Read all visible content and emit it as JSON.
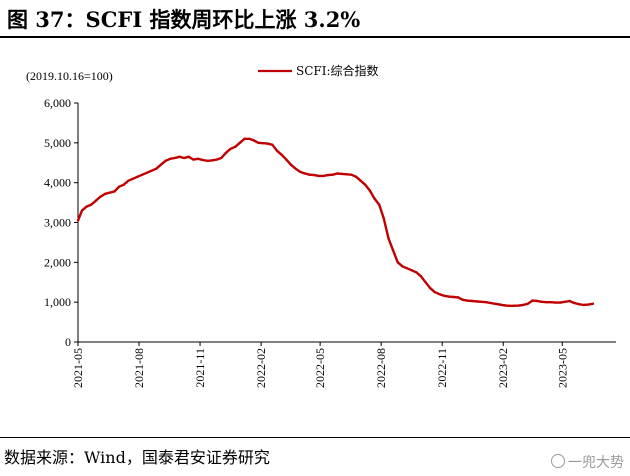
{
  "title": "图 37：SCFI 指数周环比上涨 3.2%",
  "source": "数据来源：Wind，国泰君安证券研究",
  "watermark": "一兜大势",
  "colors": {
    "series": "#c00000",
    "axis": "#000000"
  },
  "chart_data": {
    "type": "line",
    "unit_note": "(2019.10.16=100)",
    "ylim": [
      0,
      6000
    ],
    "yticks": [
      0,
      1000,
      2000,
      3000,
      4000,
      5000,
      6000
    ],
    "ytick_labels": [
      "0",
      "1,000",
      "2,000",
      "3,000",
      "4,000",
      "5,000",
      "6,000"
    ],
    "xlim": [
      "2021-05-01",
      "2023-07-21"
    ],
    "xticks": [
      "2021-05",
      "2021-08",
      "2021-11",
      "2022-02",
      "2022-05",
      "2022-08",
      "2022-11",
      "2023-02",
      "2023-05"
    ],
    "grid": false,
    "legend_position": "top",
    "series": [
      {
        "name": "SCFI:综合指数",
        "points": [
          [
            "2021-05-01",
            3050
          ],
          [
            "2021-05-07",
            3300
          ],
          [
            "2021-05-14",
            3400
          ],
          [
            "2021-05-21",
            3450
          ],
          [
            "2021-05-28",
            3550
          ],
          [
            "2021-06-04",
            3650
          ],
          [
            "2021-06-11",
            3720
          ],
          [
            "2021-06-18",
            3750
          ],
          [
            "2021-06-25",
            3780
          ],
          [
            "2021-07-02",
            3900
          ],
          [
            "2021-07-09",
            3950
          ],
          [
            "2021-07-16",
            4050
          ],
          [
            "2021-07-23",
            4100
          ],
          [
            "2021-07-30",
            4150
          ],
          [
            "2021-08-06",
            4200
          ],
          [
            "2021-08-13",
            4250
          ],
          [
            "2021-08-20",
            4300
          ],
          [
            "2021-08-27",
            4350
          ],
          [
            "2021-09-03",
            4450
          ],
          [
            "2021-09-10",
            4550
          ],
          [
            "2021-09-17",
            4600
          ],
          [
            "2021-09-24",
            4620
          ],
          [
            "2021-10-01",
            4650
          ],
          [
            "2021-10-08",
            4620
          ],
          [
            "2021-10-15",
            4650
          ],
          [
            "2021-10-22",
            4580
          ],
          [
            "2021-10-29",
            4600
          ],
          [
            "2021-11-05",
            4570
          ],
          [
            "2021-11-12",
            4550
          ],
          [
            "2021-11-19",
            4560
          ],
          [
            "2021-11-26",
            4580
          ],
          [
            "2021-12-03",
            4620
          ],
          [
            "2021-12-10",
            4750
          ],
          [
            "2021-12-17",
            4850
          ],
          [
            "2021-12-24",
            4900
          ],
          [
            "2021-12-31",
            5000
          ],
          [
            "2022-01-07",
            5100
          ],
          [
            "2022-01-14",
            5100
          ],
          [
            "2022-01-21",
            5060
          ],
          [
            "2022-01-28",
            5000
          ],
          [
            "2022-02-04",
            4990
          ],
          [
            "2022-02-11",
            4980
          ],
          [
            "2022-02-18",
            4950
          ],
          [
            "2022-02-25",
            4800
          ],
          [
            "2022-03-04",
            4700
          ],
          [
            "2022-03-11",
            4580
          ],
          [
            "2022-03-18",
            4450
          ],
          [
            "2022-03-25",
            4350
          ],
          [
            "2022-04-01",
            4270
          ],
          [
            "2022-04-08",
            4230
          ],
          [
            "2022-04-15",
            4200
          ],
          [
            "2022-04-22",
            4190
          ],
          [
            "2022-04-29",
            4170
          ],
          [
            "2022-05-06",
            4170
          ],
          [
            "2022-05-13",
            4190
          ],
          [
            "2022-05-20",
            4200
          ],
          [
            "2022-05-27",
            4230
          ],
          [
            "2022-06-03",
            4220
          ],
          [
            "2022-06-10",
            4210
          ],
          [
            "2022-06-17",
            4200
          ],
          [
            "2022-06-24",
            4150
          ],
          [
            "2022-07-01",
            4050
          ],
          [
            "2022-07-08",
            3950
          ],
          [
            "2022-07-15",
            3800
          ],
          [
            "2022-07-22",
            3600
          ],
          [
            "2022-07-29",
            3450
          ],
          [
            "2022-08-05",
            3100
          ],
          [
            "2022-08-12",
            2600
          ],
          [
            "2022-08-19",
            2300
          ],
          [
            "2022-08-26",
            2000
          ],
          [
            "2022-09-02",
            1900
          ],
          [
            "2022-09-09",
            1850
          ],
          [
            "2022-09-16",
            1800
          ],
          [
            "2022-09-23",
            1750
          ],
          [
            "2022-09-30",
            1650
          ],
          [
            "2022-10-07",
            1500
          ],
          [
            "2022-10-14",
            1350
          ],
          [
            "2022-10-21",
            1250
          ],
          [
            "2022-10-28",
            1200
          ],
          [
            "2022-11-04",
            1160
          ],
          [
            "2022-11-11",
            1140
          ],
          [
            "2022-11-18",
            1130
          ],
          [
            "2022-11-25",
            1120
          ],
          [
            "2022-12-02",
            1060
          ],
          [
            "2022-12-09",
            1040
          ],
          [
            "2022-12-16",
            1030
          ],
          [
            "2022-12-23",
            1020
          ],
          [
            "2022-12-30",
            1010
          ],
          [
            "2023-01-06",
            1000
          ],
          [
            "2023-01-13",
            980
          ],
          [
            "2023-01-20",
            960
          ],
          [
            "2023-01-27",
            940
          ],
          [
            "2023-02-03",
            920
          ],
          [
            "2023-02-10",
            910
          ],
          [
            "2023-02-17",
            910
          ],
          [
            "2023-02-24",
            915
          ],
          [
            "2023-03-03",
            930
          ],
          [
            "2023-03-10",
            960
          ],
          [
            "2023-03-17",
            1040
          ],
          [
            "2023-03-24",
            1030
          ],
          [
            "2023-03-31",
            1010
          ],
          [
            "2023-04-07",
            1000
          ],
          [
            "2023-04-14",
            1000
          ],
          [
            "2023-04-21",
            990
          ],
          [
            "2023-04-28",
            990
          ],
          [
            "2023-05-05",
            1010
          ],
          [
            "2023-05-12",
            1030
          ],
          [
            "2023-05-19",
            980
          ],
          [
            "2023-05-26",
            950
          ],
          [
            "2023-06-02",
            930
          ],
          [
            "2023-06-09",
            940
          ],
          [
            "2023-06-16",
            960
          ]
        ]
      }
    ]
  }
}
